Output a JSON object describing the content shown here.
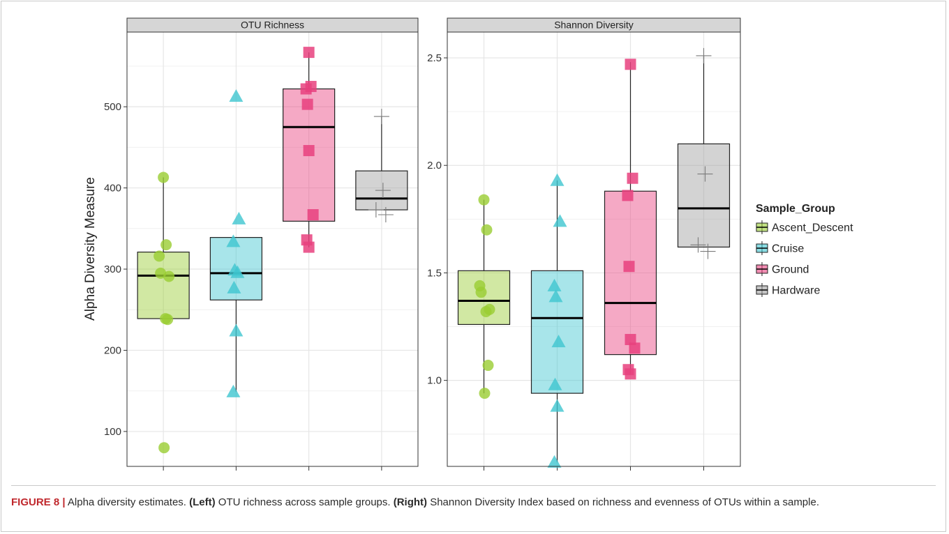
{
  "caption": {
    "figure_label": "FIGURE 8 |",
    "text_1": " Alpha diversity estimates. ",
    "left_label": "(Left)",
    "text_2": " OTU richness across sample groups. ",
    "right_label": "(Right)",
    "text_3": " Shannon Diversity Index based on richness and evenness of OTUs within a sample."
  },
  "colors": {
    "Ascent_Descent": "#9ACD32",
    "Cruise": "#3EC5D0",
    "Ground": "#E8417E",
    "Hardware": "#9E9E9E",
    "strip_fill": "#D6D6D6",
    "grid": "#E6E6E6"
  },
  "chart_data": {
    "type": "boxplot",
    "ylabel": "Alpha Diversity Measure",
    "legend": {
      "title": "Sample_Group",
      "position": "right",
      "entries": [
        "Ascent_Descent",
        "Cruise",
        "Ground",
        "Hardware"
      ]
    },
    "categories": [
      "Ascent_Descent",
      "Cruise",
      "Ground",
      "Hardware"
    ],
    "marker_shapes": {
      "Ascent_Descent": "circle",
      "Cruise": "triangle",
      "Ground": "square",
      "Hardware": "plus"
    },
    "grid": true,
    "panels": [
      {
        "title": "OTU Richness",
        "ylim": [
          57,
          592
        ],
        "yticks": [
          100,
          200,
          300,
          400,
          500
        ],
        "ytick_labels": [
          "100",
          "200",
          "300",
          "400",
          "500"
        ],
        "boxes": [
          {
            "group": "Ascent_Descent",
            "q1": 239,
            "median": 292,
            "q3": 321,
            "whisker_low": 239,
            "whisker_high": 413,
            "points": [
              413,
              330,
              316,
              295,
              291,
              239,
              238,
              80
            ]
          },
          {
            "group": "Cruise",
            "q1": 262,
            "median": 295,
            "q3": 339,
            "whisker_low": 149,
            "whisker_high": 339,
            "points": [
              513,
              362,
              334,
              299,
              296,
              277,
              224,
              149
            ]
          },
          {
            "group": "Ground",
            "q1": 359,
            "median": 475,
            "q3": 522,
            "whisker_low": 327,
            "whisker_high": 567,
            "points": [
              567,
              525,
              522,
              503,
              446,
              367,
              336,
              327
            ]
          },
          {
            "group": "Hardware",
            "q1": 373,
            "median": 387,
            "q3": 421,
            "whisker_low": 373,
            "whisker_high": 488,
            "points": [
              488,
              397,
              373,
              367
            ]
          }
        ]
      },
      {
        "title": "Shannon Diversity",
        "ylim": [
          0.6,
          2.62
        ],
        "yticks": [
          1.0,
          1.5,
          2.0,
          2.5
        ],
        "ytick_labels": [
          "1.0",
          "1.5",
          "2.0",
          "2.5"
        ],
        "boxes": [
          {
            "group": "Ascent_Descent",
            "q1": 1.26,
            "median": 1.37,
            "q3": 1.51,
            "whisker_low": 0.94,
            "whisker_high": 1.84,
            "points": [
              1.84,
              1.7,
              1.44,
              1.41,
              1.33,
              1.32,
              1.07,
              0.94
            ]
          },
          {
            "group": "Cruise",
            "q1": 0.94,
            "median": 1.29,
            "q3": 1.51,
            "whisker_low": 0.62,
            "whisker_high": 1.93,
            "points": [
              1.93,
              1.74,
              1.44,
              1.39,
              1.18,
              0.98,
              0.88,
              0.62
            ]
          },
          {
            "group": "Ground",
            "q1": 1.12,
            "median": 1.36,
            "q3": 1.88,
            "whisker_low": 1.03,
            "whisker_high": 2.48,
            "points": [
              2.47,
              1.94,
              1.86,
              1.53,
              1.19,
              1.15,
              1.05,
              1.03
            ]
          },
          {
            "group": "Hardware",
            "q1": 1.62,
            "median": 1.8,
            "q3": 2.1,
            "whisker_low": 1.62,
            "whisker_high": 2.51,
            "points": [
              2.51,
              1.96,
              1.63,
              1.6
            ]
          }
        ]
      }
    ]
  }
}
